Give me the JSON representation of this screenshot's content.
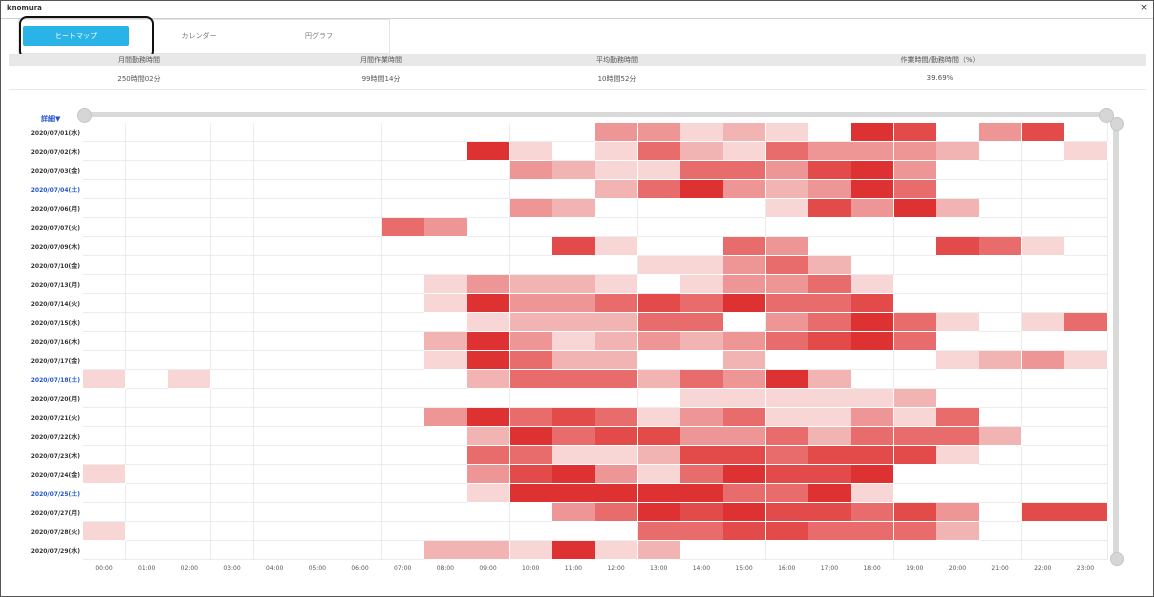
{
  "window": {
    "title": "knomura",
    "close_symbol": "×"
  },
  "tabs": [
    {
      "label": "ヒートマップ",
      "active": true
    },
    {
      "label": "カレンダー",
      "active": false
    },
    {
      "label": "円グラフ",
      "active": false
    }
  ],
  "summary": [
    {
      "label": "月間勤務時間",
      "value": "250時間02分"
    },
    {
      "label": "月間作業時間",
      "value": "99時間14分"
    },
    {
      "label": "平均勤務時間",
      "value": "10時間52分"
    },
    {
      "label": "作業時間/勤務時間（%）",
      "value": "39.69%"
    }
  ],
  "detail_link": "詳細▼",
  "colors": {
    "accent": "#29b3e6",
    "saturday": "#2255cc",
    "heat": [
      "#ffffff",
      "#f8d6d6",
      "#f2b3b3",
      "#ee9595",
      "#e96c6c",
      "#e34b4b",
      "#de3232"
    ]
  },
  "chart_data": {
    "type": "heatmap",
    "x": [
      "00:00",
      "01:00",
      "02:00",
      "03:00",
      "04:00",
      "05:00",
      "06:00",
      "07:00",
      "08:00",
      "09:00",
      "10:00",
      "11:00",
      "12:00",
      "13:00",
      "14:00",
      "15:00",
      "16:00",
      "17:00",
      "18:00",
      "19:00",
      "20:00",
      "21:00",
      "22:00",
      "23:00"
    ],
    "rows": [
      {
        "date": "2020/07/01(水)",
        "saturday": false,
        "values": [
          0,
          0,
          0,
          0,
          0,
          0,
          0,
          0,
          0,
          0,
          0,
          0,
          3,
          3,
          1,
          2,
          1,
          0,
          6,
          5,
          0,
          3,
          5,
          0
        ]
      },
      {
        "date": "2020/07/02(木)",
        "saturday": false,
        "values": [
          0,
          0,
          0,
          0,
          0,
          0,
          0,
          0,
          0,
          6,
          1,
          0,
          1,
          4,
          2,
          1,
          4,
          3,
          3,
          3,
          2,
          0,
          0,
          1
        ]
      },
      {
        "date": "2020/07/03(金)",
        "saturday": false,
        "values": [
          0,
          0,
          0,
          0,
          0,
          0,
          0,
          0,
          0,
          0,
          3,
          2,
          1,
          1,
          4,
          4,
          3,
          5,
          6,
          3,
          0,
          0,
          0,
          0
        ]
      },
      {
        "date": "2020/07/04(土)",
        "saturday": true,
        "values": [
          0,
          0,
          0,
          0,
          0,
          0,
          0,
          0,
          0,
          0,
          0,
          0,
          2,
          4,
          6,
          3,
          2,
          3,
          6,
          4,
          0,
          0,
          0,
          0
        ]
      },
      {
        "date": "2020/07/06(月)",
        "saturday": false,
        "values": [
          0,
          0,
          0,
          0,
          0,
          0,
          0,
          0,
          0,
          0,
          3,
          2,
          0,
          0,
          0,
          0,
          1,
          5,
          3,
          6,
          2,
          0,
          0,
          0
        ]
      },
      {
        "date": "2020/07/07(火)",
        "saturday": false,
        "values": [
          0,
          0,
          0,
          0,
          0,
          0,
          0,
          4,
          3,
          0,
          0,
          0,
          0,
          0,
          0,
          0,
          0,
          0,
          0,
          0,
          0,
          0,
          0,
          0
        ]
      },
      {
        "date": "2020/07/09(木)",
        "saturday": false,
        "values": [
          0,
          0,
          0,
          0,
          0,
          0,
          0,
          0,
          0,
          0,
          0,
          5,
          1,
          0,
          0,
          4,
          3,
          0,
          0,
          0,
          5,
          4,
          1,
          0
        ]
      },
      {
        "date": "2020/07/10(金)",
        "saturday": false,
        "values": [
          0,
          0,
          0,
          0,
          0,
          0,
          0,
          0,
          0,
          0,
          0,
          0,
          0,
          1,
          1,
          3,
          4,
          2,
          0,
          0,
          0,
          0,
          0,
          0
        ]
      },
      {
        "date": "2020/07/13(月)",
        "saturday": false,
        "values": [
          0,
          0,
          0,
          0,
          0,
          0,
          0,
          0,
          1,
          3,
          2,
          2,
          1,
          0,
          1,
          3,
          3,
          4,
          1,
          0,
          0,
          0,
          0,
          0
        ]
      },
      {
        "date": "2020/07/14(火)",
        "saturday": false,
        "values": [
          0,
          0,
          0,
          0,
          0,
          0,
          0,
          0,
          1,
          6,
          3,
          3,
          4,
          5,
          4,
          6,
          4,
          4,
          5,
          0,
          0,
          0,
          0,
          0
        ]
      },
      {
        "date": "2020/07/15(水)",
        "saturday": false,
        "values": [
          0,
          0,
          0,
          0,
          0,
          0,
          0,
          0,
          0,
          1,
          2,
          2,
          2,
          4,
          4,
          0,
          3,
          4,
          6,
          4,
          1,
          0,
          1,
          4
        ]
      },
      {
        "date": "2020/07/16(木)",
        "saturday": false,
        "values": [
          0,
          0,
          0,
          0,
          0,
          0,
          0,
          0,
          2,
          6,
          3,
          1,
          2,
          3,
          2,
          3,
          4,
          5,
          6,
          4,
          0,
          0,
          0,
          0
        ]
      },
      {
        "date": "2020/07/17(金)",
        "saturday": false,
        "values": [
          0,
          0,
          0,
          0,
          0,
          0,
          0,
          0,
          1,
          6,
          4,
          2,
          2,
          0,
          0,
          2,
          0,
          0,
          0,
          0,
          1,
          2,
          3,
          1
        ]
      },
      {
        "date": "2020/07/18(土)",
        "saturday": true,
        "values": [
          1,
          0,
          1,
          0,
          0,
          0,
          0,
          0,
          0,
          2,
          4,
          4,
          4,
          2,
          4,
          3,
          6,
          2,
          0,
          0,
          0,
          0,
          0,
          0
        ]
      },
      {
        "date": "2020/07/20(月)",
        "saturday": false,
        "values": [
          0,
          0,
          0,
          0,
          0,
          0,
          0,
          0,
          0,
          0,
          0,
          0,
          0,
          0,
          1,
          1,
          1,
          1,
          1,
          2,
          0,
          0,
          0,
          0
        ]
      },
      {
        "date": "2020/07/21(火)",
        "saturday": false,
        "values": [
          0,
          0,
          0,
          0,
          0,
          0,
          0,
          0,
          3,
          6,
          4,
          5,
          4,
          1,
          3,
          4,
          1,
          1,
          3,
          1,
          4,
          0,
          0,
          0
        ]
      },
      {
        "date": "2020/07/22(水)",
        "saturday": false,
        "values": [
          0,
          0,
          0,
          0,
          0,
          0,
          0,
          0,
          0,
          2,
          6,
          4,
          5,
          5,
          3,
          3,
          4,
          2,
          4,
          4,
          4,
          2,
          0,
          0
        ]
      },
      {
        "date": "2020/07/23(木)",
        "saturday": false,
        "values": [
          0,
          0,
          0,
          0,
          0,
          0,
          0,
          0,
          0,
          4,
          4,
          1,
          1,
          2,
          5,
          5,
          4,
          5,
          5,
          5,
          1,
          0,
          0,
          0
        ]
      },
      {
        "date": "2020/07/24(金)",
        "saturday": false,
        "values": [
          1,
          0,
          0,
          0,
          0,
          0,
          0,
          0,
          0,
          3,
          5,
          6,
          3,
          1,
          4,
          6,
          5,
          5,
          6,
          0,
          0,
          0,
          0,
          0
        ]
      },
      {
        "date": "2020/07/25(土)",
        "saturday": true,
        "values": [
          0,
          0,
          0,
          0,
          0,
          0,
          0,
          0,
          0,
          1,
          6,
          6,
          6,
          6,
          6,
          4,
          4,
          6,
          1,
          0,
          0,
          0,
          0,
          0
        ]
      },
      {
        "date": "2020/07/27(月)",
        "saturday": false,
        "values": [
          0,
          0,
          0,
          0,
          0,
          0,
          0,
          0,
          0,
          0,
          0,
          3,
          4,
          6,
          5,
          6,
          5,
          5,
          4,
          5,
          3,
          0,
          5,
          5
        ]
      },
      {
        "date": "2020/07/28(火)",
        "saturday": false,
        "values": [
          1,
          0,
          0,
          0,
          0,
          0,
          0,
          0,
          0,
          0,
          0,
          0,
          0,
          4,
          4,
          5,
          5,
          4,
          4,
          4,
          2,
          0,
          0,
          0
        ]
      },
      {
        "date": "2020/07/29(水)",
        "saturday": false,
        "values": [
          0,
          0,
          0,
          0,
          0,
          0,
          0,
          0,
          2,
          2,
          1,
          6,
          1,
          2,
          0,
          0,
          0,
          0,
          0,
          0,
          0,
          0,
          0,
          0
        ]
      }
    ]
  }
}
